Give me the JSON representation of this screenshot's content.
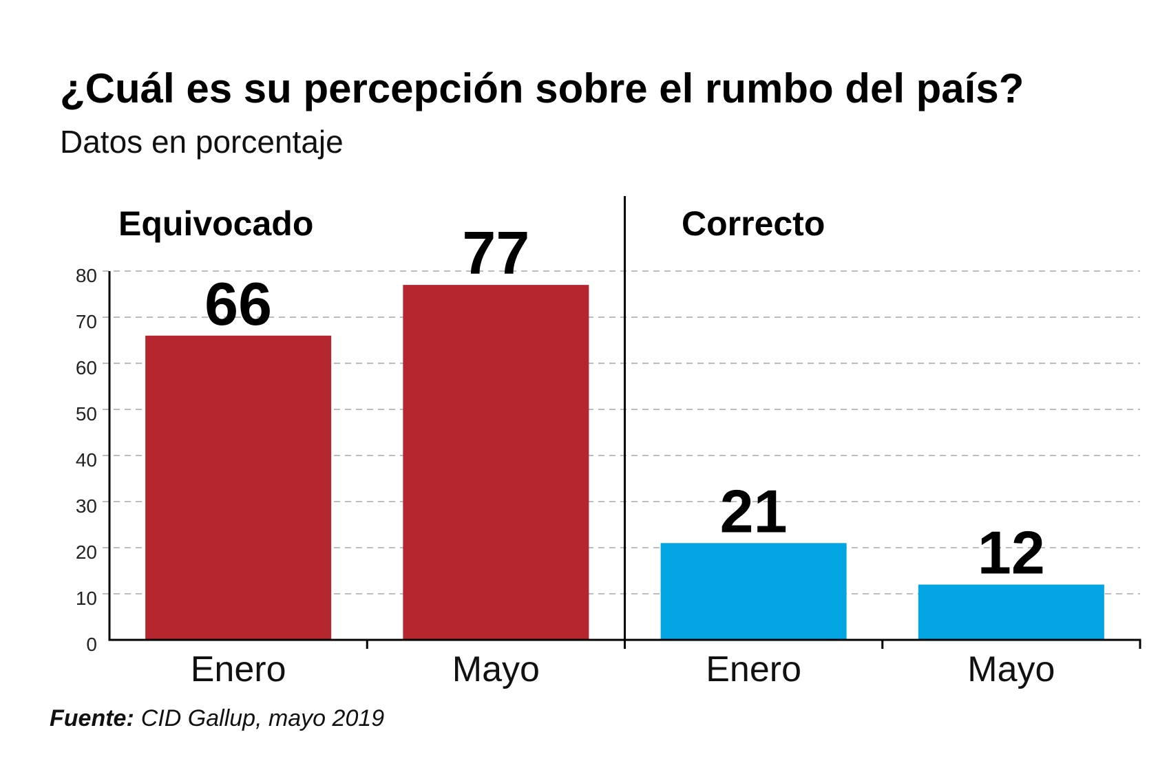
{
  "chart_data": {
    "type": "bar",
    "title": "¿Cuál es su percepción sobre el rumbo del país?",
    "subtitle": "Datos en porcentaje",
    "categories": [
      "Enero",
      "Mayo"
    ],
    "series": [
      {
        "name": "Equivocado",
        "values": [
          66,
          77
        ],
        "color": "#b5262f"
      },
      {
        "name": "Correcto",
        "values": [
          21,
          12
        ],
        "color": "#04a5e3"
      }
    ],
    "ylim": [
      0,
      80
    ],
    "yticks": [
      0,
      10,
      20,
      30,
      40,
      50,
      60,
      70,
      80
    ],
    "grid": true
  },
  "source": {
    "label": "Fuente:",
    "text": "CID Gallup, mayo 2019"
  }
}
